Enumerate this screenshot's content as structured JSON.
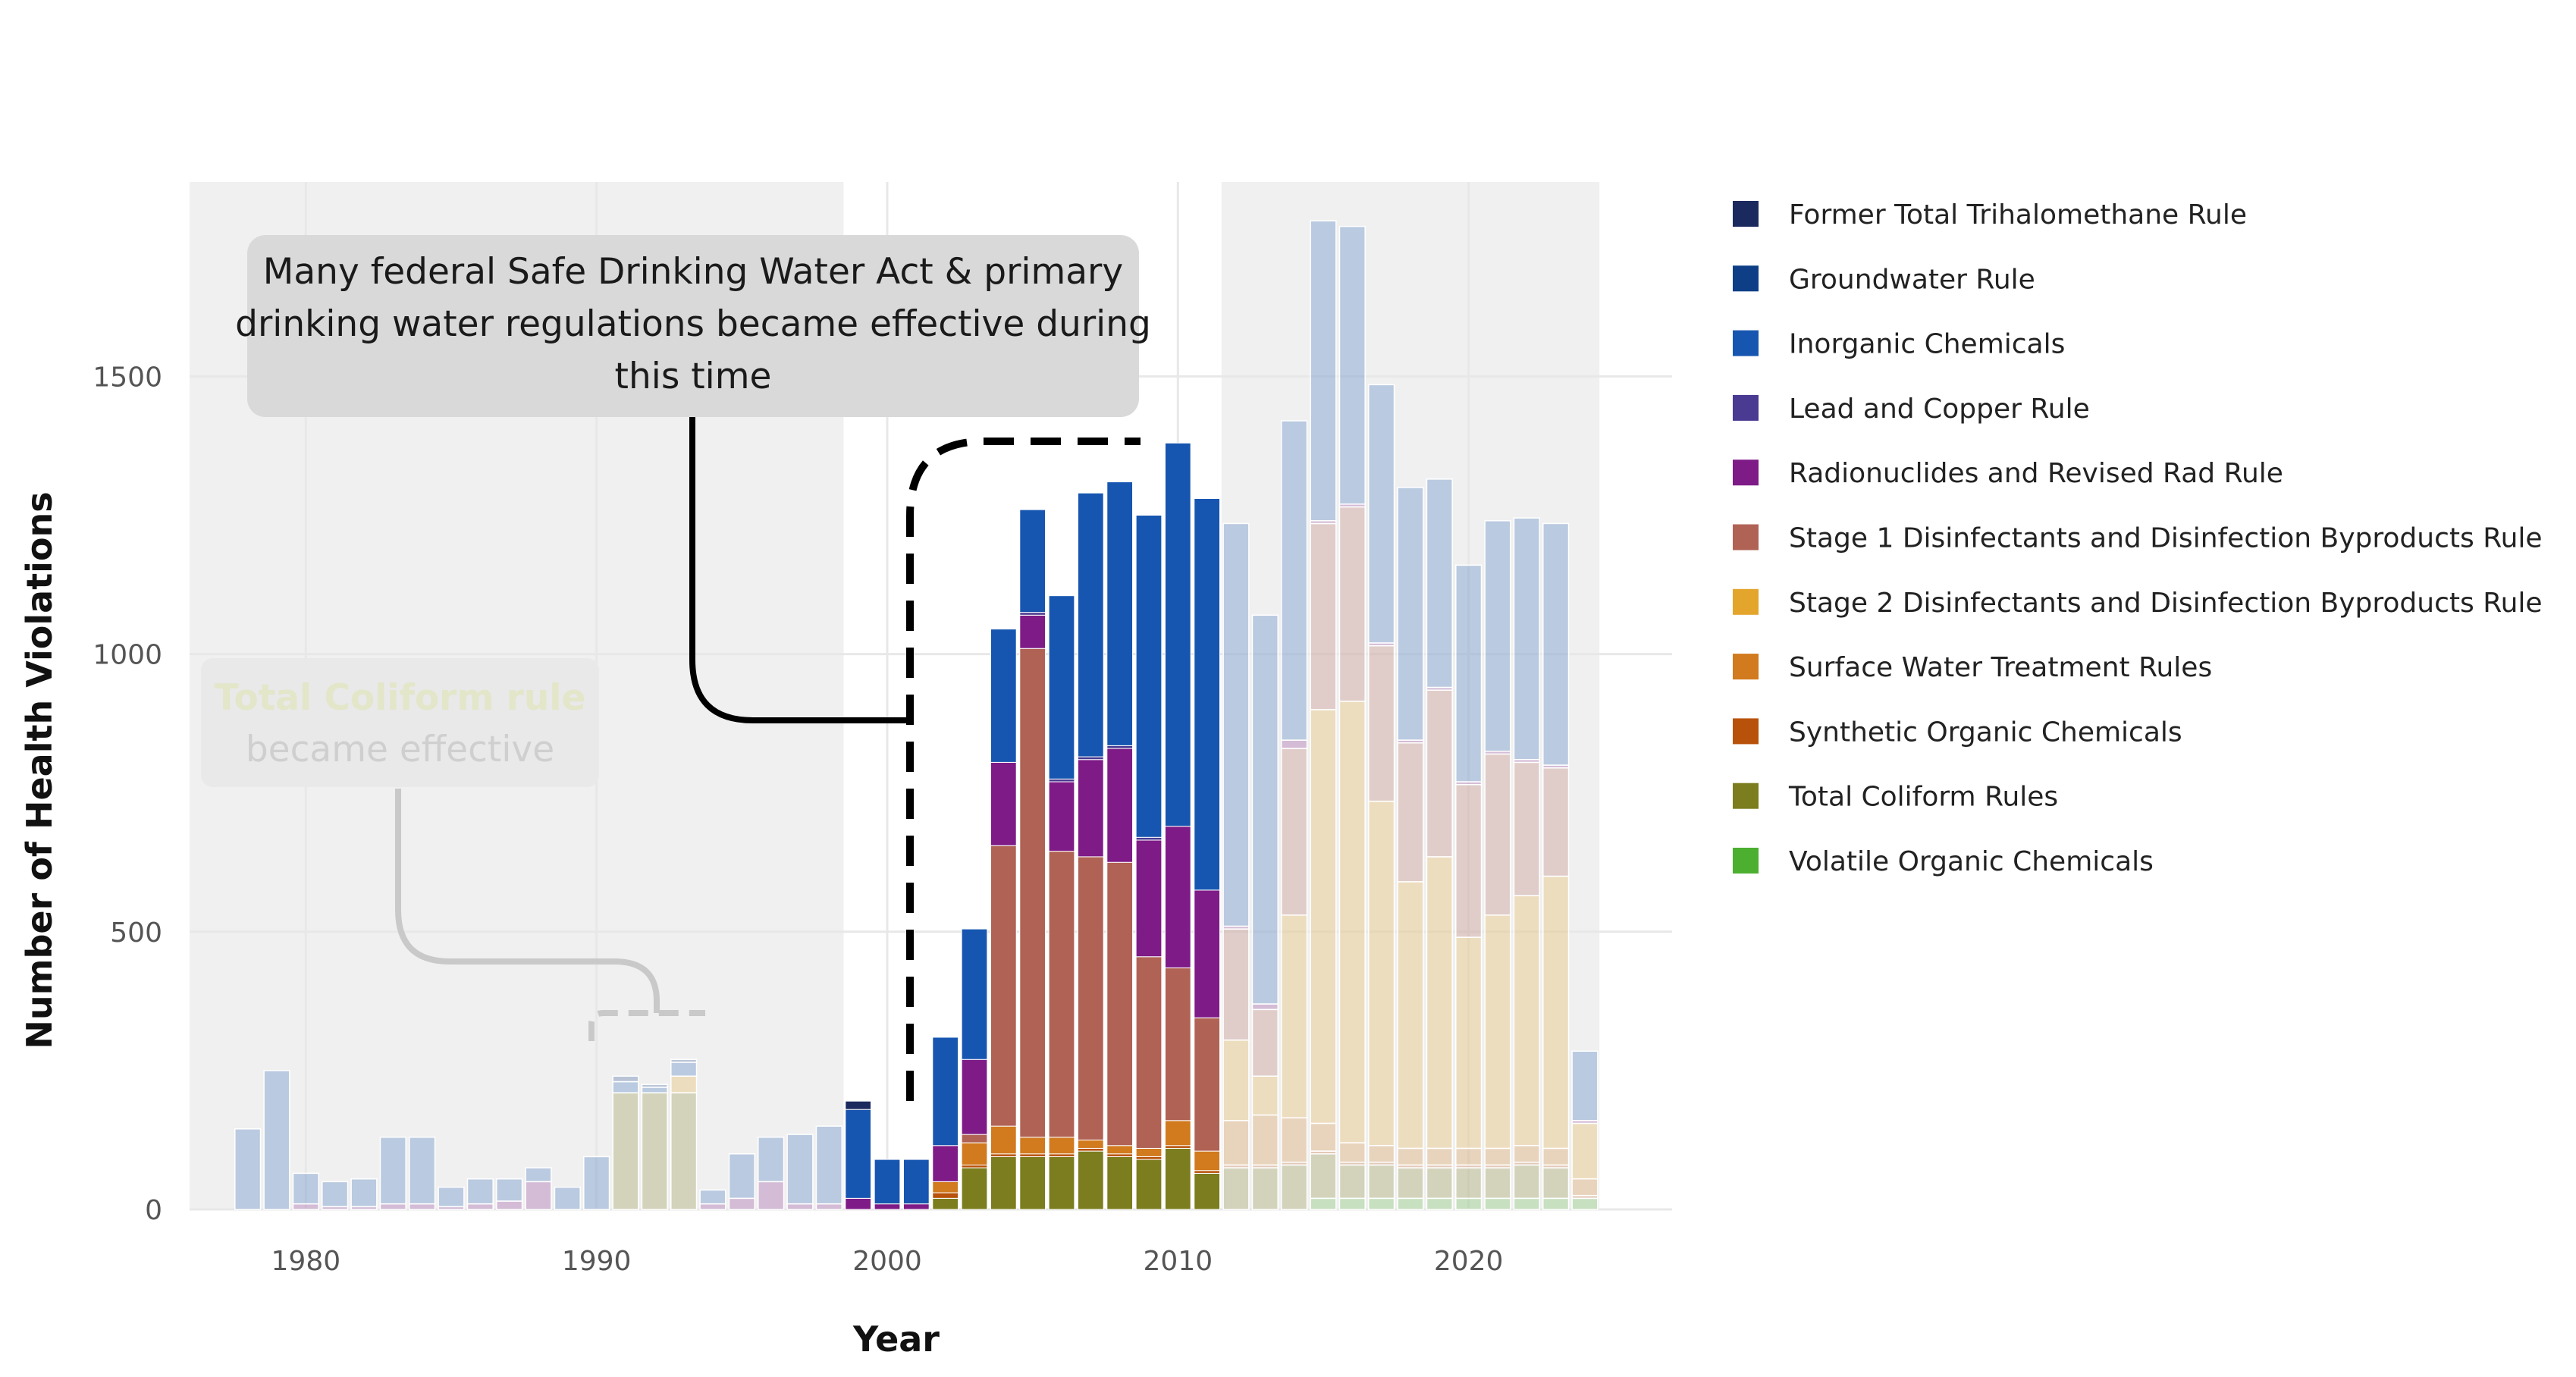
{
  "chart_data": {
    "type": "bar",
    "stacked": true,
    "xlabel": "Year",
    "ylabel": "Number of Health Violations",
    "xlim": [
      1976,
      2027
    ],
    "ylim": [
      0,
      1850
    ],
    "x_ticks": [
      1980,
      1990,
      2000,
      2010,
      2020
    ],
    "y_ticks": [
      0,
      500,
      1000,
      1500
    ],
    "grid": true,
    "legend_position": "right",
    "shaded_periods": [
      [
        1976,
        1998.5
      ],
      [
        2011.5,
        2024.5
      ]
    ],
    "highlight_period": [
      1998.5,
      2011.5
    ],
    "years": [
      1978,
      1979,
      1980,
      1981,
      1982,
      1983,
      1984,
      1985,
      1986,
      1987,
      1988,
      1989,
      1990,
      1991,
      1992,
      1993,
      1994,
      1995,
      1996,
      1997,
      1998,
      1999,
      2000,
      2001,
      2002,
      2003,
      2004,
      2005,
      2006,
      2007,
      2008,
      2009,
      2010,
      2011,
      2012,
      2013,
      2014,
      2015,
      2016,
      2017,
      2018,
      2019,
      2020,
      2021,
      2022,
      2023,
      2024
    ],
    "series": [
      {
        "name": "Volatile Organic Chemicals",
        "color": "#4caf30",
        "values": [
          0,
          0,
          0,
          0,
          0,
          0,
          0,
          0,
          0,
          0,
          0,
          0,
          0,
          0,
          0,
          0,
          0,
          0,
          0,
          0,
          0,
          0,
          0,
          0,
          0,
          0,
          0,
          0,
          0,
          0,
          0,
          0,
          0,
          0,
          0,
          0,
          0,
          20,
          20,
          20,
          20,
          20,
          20,
          20,
          20,
          20,
          20
        ]
      },
      {
        "name": "Total Coliform Rules",
        "color": "#7b7d1e",
        "values": [
          0,
          0,
          0,
          0,
          0,
          0,
          0,
          0,
          0,
          0,
          0,
          0,
          0,
          210,
          210,
          210,
          0,
          0,
          0,
          0,
          0,
          0,
          0,
          0,
          20,
          75,
          95,
          95,
          95,
          105,
          95,
          90,
          110,
          65,
          75,
          75,
          80,
          80,
          60,
          60,
          55,
          55,
          55,
          55,
          60,
          55,
          0
        ]
      },
      {
        "name": "Synthetic Organic Chemicals",
        "color": "#b8520a",
        "values": [
          0,
          0,
          0,
          0,
          0,
          0,
          0,
          0,
          0,
          0,
          0,
          0,
          0,
          0,
          0,
          0,
          0,
          0,
          0,
          0,
          0,
          0,
          0,
          0,
          10,
          5,
          5,
          5,
          5,
          5,
          5,
          5,
          5,
          5,
          5,
          5,
          5,
          5,
          5,
          5,
          5,
          5,
          5,
          5,
          5,
          5,
          5
        ]
      },
      {
        "name": "Surface Water Treatment Rules",
        "color": "#d17a1e",
        "values": [
          0,
          0,
          0,
          0,
          0,
          0,
          0,
          0,
          0,
          0,
          0,
          0,
          0,
          0,
          0,
          0,
          0,
          0,
          0,
          0,
          0,
          0,
          0,
          0,
          20,
          40,
          50,
          30,
          30,
          15,
          15,
          15,
          45,
          35,
          80,
          90,
          80,
          50,
          35,
          30,
          30,
          30,
          30,
          30,
          30,
          30,
          30
        ]
      },
      {
        "name": "Stage 2 Disinfectants and Disinfection Byproducts Rule",
        "color": "#e3a52b",
        "values": [
          0,
          0,
          0,
          0,
          0,
          0,
          0,
          0,
          0,
          0,
          0,
          0,
          0,
          0,
          0,
          30,
          0,
          0,
          0,
          0,
          0,
          0,
          0,
          0,
          0,
          0,
          0,
          0,
          0,
          0,
          0,
          0,
          0,
          0,
          145,
          70,
          365,
          745,
          795,
          620,
          480,
          525,
          380,
          420,
          450,
          490,
          100
        ]
      },
      {
        "name": "Stage 1 Disinfectants and Disinfection Byproducts Rule",
        "color": "#b06255",
        "values": [
          0,
          0,
          0,
          0,
          0,
          0,
          0,
          0,
          0,
          0,
          0,
          0,
          0,
          0,
          0,
          0,
          0,
          0,
          0,
          0,
          0,
          0,
          0,
          0,
          0,
          15,
          505,
          880,
          515,
          510,
          510,
          345,
          275,
          240,
          200,
          120,
          300,
          335,
          350,
          280,
          250,
          300,
          275,
          290,
          240,
          195,
          0
        ]
      },
      {
        "name": "Radionuclides and Revised Rad Rule",
        "color": "#7e1b87",
        "values": [
          0,
          0,
          10,
          5,
          5,
          10,
          10,
          5,
          10,
          15,
          50,
          0,
          0,
          0,
          0,
          0,
          10,
          20,
          50,
          10,
          10,
          20,
          10,
          10,
          65,
          135,
          150,
          60,
          125,
          175,
          205,
          210,
          255,
          230,
          5,
          10,
          15,
          5,
          5,
          5,
          5,
          5,
          5,
          5,
          5,
          5,
          5
        ]
      },
      {
        "name": "Lead and Copper Rule",
        "color": "#4a3a91",
        "values": [
          0,
          0,
          0,
          0,
          0,
          0,
          0,
          0,
          0,
          0,
          0,
          0,
          0,
          0,
          0,
          0,
          0,
          0,
          0,
          0,
          0,
          0,
          0,
          0,
          0,
          0,
          0,
          5,
          5,
          5,
          5,
          5,
          0,
          0,
          0,
          0,
          0,
          0,
          0,
          0,
          0,
          0,
          0,
          0,
          0,
          0,
          0
        ]
      },
      {
        "name": "Inorganic Chemicals",
        "color": "#1756b0",
        "values": [
          145,
          250,
          55,
          45,
          50,
          120,
          120,
          35,
          45,
          40,
          25,
          40,
          95,
          20,
          10,
          25,
          25,
          80,
          80,
          125,
          140,
          160,
          80,
          80,
          195,
          235,
          240,
          185,
          330,
          475,
          475,
          580,
          690,
          705,
          725,
          700,
          575,
          540,
          500,
          465,
          455,
          375,
          390,
          415,
          435,
          435,
          125
        ]
      },
      {
        "name": "Groundwater Rule",
        "color": "#0e3f86",
        "values": [
          0,
          0,
          0,
          0,
          0,
          0,
          0,
          0,
          0,
          0,
          0,
          0,
          0,
          10,
          5,
          5,
          0,
          0,
          0,
          0,
          0,
          0,
          0,
          0,
          0,
          0,
          0,
          0,
          0,
          0,
          0,
          0,
          0,
          0,
          0,
          0,
          0,
          0,
          0,
          0,
          0,
          0,
          0,
          0,
          0,
          0,
          0
        ]
      },
      {
        "name": "Former Total Trihalomethane Rule",
        "color": "#1b2a5e",
        "values": [
          0,
          0,
          0,
          0,
          0,
          0,
          0,
          0,
          0,
          0,
          0,
          0,
          0,
          0,
          0,
          0,
          0,
          0,
          0,
          0,
          0,
          15,
          0,
          0,
          0,
          0,
          0,
          0,
          0,
          0,
          0,
          0,
          0,
          0,
          0,
          0,
          0,
          0,
          0,
          0,
          0,
          0,
          0,
          0,
          0,
          0,
          0
        ]
      }
    ],
    "annotations": [
      {
        "id": "swda",
        "text_lines": [
          "Many federal Safe Drinking Water Act & primary",
          "drinking water regulations became effective during",
          "this time"
        ],
        "faded": false
      },
      {
        "id": "tcr",
        "text_lines": [
          "Total Coliform rule",
          "became effective"
        ],
        "faded": true
      }
    ]
  },
  "colors": {
    "shade": "#f0f0f0",
    "grid": "#e8e8e8",
    "annot_box": "#d9d9d9",
    "faded_box": "#e9e9e9",
    "faded_title": "#e3e6c8",
    "faded_text": "#cfcfcf"
  }
}
